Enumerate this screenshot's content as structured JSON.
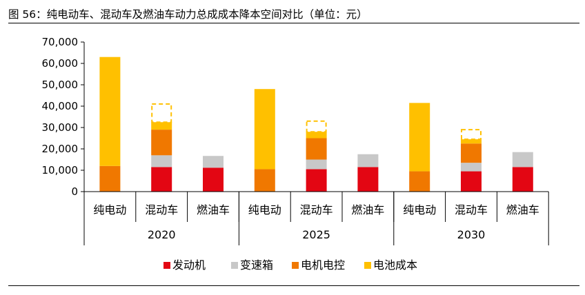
{
  "chart_data": {
    "type": "bar",
    "stacked": true,
    "title": "图 56：纯电动车、混动车及燃油车动力总成成本降本空间对比（单位：元）",
    "ylim": [
      0,
      70000
    ],
    "yticks": [
      "0",
      "10,000",
      "20,000",
      "30,000",
      "40,000",
      "50,000",
      "60,000",
      "70,000"
    ],
    "groups": [
      {
        "label": "2020",
        "categories": [
          "纯电动",
          "混动车",
          "燃油车"
        ]
      },
      {
        "label": "2025",
        "categories": [
          "纯电动",
          "混动车",
          "燃油车"
        ]
      },
      {
        "label": "2030",
        "categories": [
          "纯电动",
          "混动车",
          "燃油车"
        ]
      }
    ],
    "series": [
      {
        "name": "发动机",
        "color": "#e30613",
        "values": [
          0,
          11500,
          11200,
          0,
          10500,
          11500,
          0,
          9500,
          11500
        ]
      },
      {
        "name": "变速箱",
        "color": "#c8c8c8",
        "values": [
          0,
          5500,
          5500,
          0,
          4500,
          6000,
          0,
          4000,
          7000
        ]
      },
      {
        "name": "电机电控",
        "color": "#f07800",
        "values": [
          12000,
          12000,
          0,
          10500,
          10000,
          0,
          9500,
          9000,
          0
        ]
      },
      {
        "name": "电池成本",
        "color": "#ffc000",
        "values": [
          51000,
          3500,
          0,
          37500,
          3000,
          0,
          32000,
          2000,
          0
        ]
      }
    ],
    "reduction_space": {
      "color": "#ffc000",
      "values": [
        0,
        8500,
        0,
        0,
        5000,
        0,
        0,
        4500,
        0
      ]
    },
    "grid": false,
    "legend": "bottom"
  }
}
